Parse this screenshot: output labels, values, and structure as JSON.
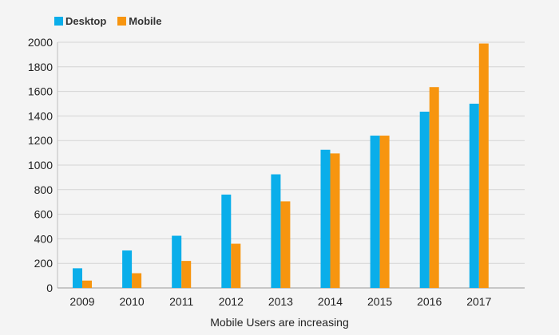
{
  "chart_data": {
    "type": "bar",
    "title": "",
    "xlabel": "Mobile Users are increasing",
    "ylabel": "",
    "categories": [
      "2009",
      "2010",
      "2011",
      "2012",
      "2013",
      "2014",
      "2015",
      "2016",
      "2017"
    ],
    "series": [
      {
        "name": "Desktop",
        "color": "#0aaeea",
        "values": [
          160,
          305,
          425,
          760,
          925,
          1125,
          1240,
          1435,
          1500
        ]
      },
      {
        "name": "Mobile",
        "color": "#f7950f",
        "values": [
          60,
          120,
          220,
          360,
          705,
          1095,
          1240,
          1635,
          1990
        ]
      }
    ],
    "ylim": [
      0,
      2000
    ],
    "yticks": [
      0,
      200,
      400,
      600,
      800,
      1000,
      1200,
      1400,
      1600,
      1800,
      2000
    ],
    "grid": true,
    "legend_position": "top-left"
  }
}
